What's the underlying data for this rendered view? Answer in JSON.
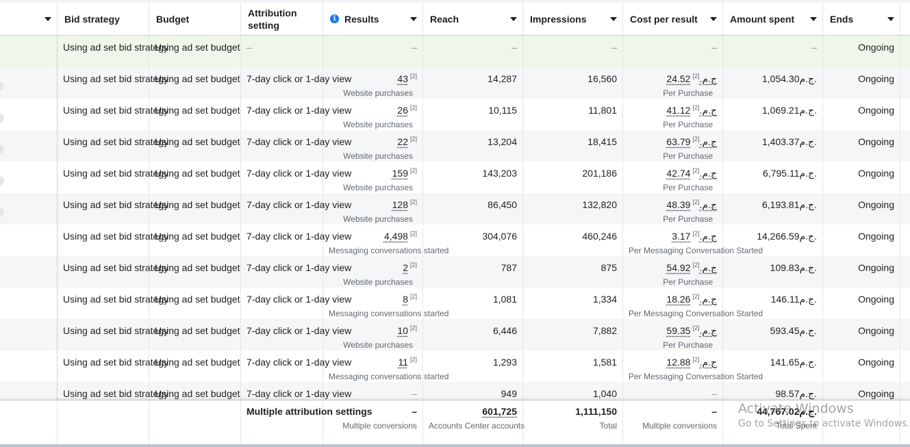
{
  "columns": [
    {
      "label": "",
      "has_caret": true
    },
    {
      "label": "Bid strategy"
    },
    {
      "label": "Budget"
    },
    {
      "label": "Attribution setting"
    },
    {
      "label": "Results",
      "info": "i",
      "has_caret": true
    },
    {
      "label": "Reach",
      "has_caret": true
    },
    {
      "label": "Impressions",
      "has_caret": true
    },
    {
      "label": "Cost per result",
      "has_caret": true
    },
    {
      "label": "Amount spent",
      "has_caret": true
    },
    {
      "label": "Ends",
      "has_caret": true
    }
  ],
  "rows": [
    {
      "bid": "Using ad set bid strategy",
      "budget": "Using ad set budget",
      "attr": "–",
      "results": "–",
      "results_sub": "",
      "reach": "–",
      "impressions": "–",
      "cost": "–",
      "cost_sub": "",
      "spent": "–",
      "ends": "Ongoing"
    },
    {
      "bid": "Using ad set bid strategy",
      "budget": "Using ad set budget",
      "attr": "7-day click or 1-day view",
      "results": "43",
      "results_sub": "Website purchases",
      "reach": "14,287",
      "impressions": "16,560",
      "cost": "24.52ج.م.",
      "cost_sub": "Per Purchase",
      "spent": "1,054.30ج.م.",
      "ends": "Ongoing"
    },
    {
      "bid": "Using ad set bid strategy",
      "budget": "Using ad set budget",
      "attr": "7-day click or 1-day view",
      "results": "26",
      "results_sub": "Website purchases",
      "reach": "10,115",
      "impressions": "11,801",
      "cost": "41.12ج.م.",
      "cost_sub": "Per Purchase",
      "spent": "1,069.21ج.م.",
      "ends": "Ongoing"
    },
    {
      "bid": "Using ad set bid strategy",
      "budget": "Using ad set budget",
      "attr": "7-day click or 1-day view",
      "results": "22",
      "results_sub": "Website purchases",
      "reach": "13,204",
      "impressions": "18,415",
      "cost": "63.79ج.م.",
      "cost_sub": "Per Purchase",
      "spent": "1,403.37ج.م.",
      "ends": "Ongoing"
    },
    {
      "bid": "Using ad set bid strategy",
      "budget": "Using ad set budget",
      "attr": "7-day click or 1-day view",
      "results": "159",
      "results_sub": "Website purchases",
      "reach": "143,203",
      "impressions": "201,186",
      "cost": "42.74ج.م.",
      "cost_sub": "Per Purchase",
      "spent": "6,795.11ج.م.",
      "ends": "Ongoing"
    },
    {
      "bid": "Using ad set bid strategy",
      "budget": "Using ad set budget",
      "attr": "7-day click or 1-day view",
      "results": "128",
      "results_sub": "Website purchases",
      "reach": "86,450",
      "impressions": "132,820",
      "cost": "48.39ج.م.",
      "cost_sub": "Per Purchase",
      "spent": "6,193.81ج.م.",
      "ends": "Ongoing"
    },
    {
      "bid": "Using ad set bid strategy",
      "budget": "Using ad set budget",
      "attr": "7-day click or 1-day view",
      "results": "4,498",
      "results_sub": "Messaging conversations started",
      "reach": "304,076",
      "impressions": "460,246",
      "cost": "3.17ج.م.",
      "cost_sub": "Per Messaging Conversation Started",
      "spent": "14,266.59ج.م.",
      "ends": "Ongoing"
    },
    {
      "bid": "Using ad set bid strategy",
      "budget": "Using ad set budget",
      "attr": "7-day click or 1-day view",
      "results": "2",
      "results_sub": "Website purchases",
      "reach": "787",
      "impressions": "875",
      "cost": "54.92ج.م.",
      "cost_sub": "Per Purchase",
      "spent": "109.83ج.م.",
      "ends": "Ongoing"
    },
    {
      "bid": "Using ad set bid strategy",
      "budget": "Using ad set budget",
      "attr": "7-day click or 1-day view",
      "results": "8",
      "results_sub": "Messaging conversations started",
      "reach": "1,081",
      "impressions": "1,334",
      "cost": "18.26ج.م.",
      "cost_sub": "Per Messaging Conversation Started",
      "spent": "146.11ج.م.",
      "ends": "Ongoing"
    },
    {
      "bid": "Using ad set bid strategy",
      "budget": "Using ad set budget",
      "attr": "7-day click or 1-day view",
      "results": "10",
      "results_sub": "Website purchases",
      "reach": "6,446",
      "impressions": "7,882",
      "cost": "59.35ج.م.",
      "cost_sub": "Per Purchase",
      "spent": "593.45ج.م.",
      "ends": "Ongoing"
    },
    {
      "bid": "Using ad set bid strategy",
      "budget": "Using ad set budget",
      "attr": "7-day click or 1-day view",
      "results": "11",
      "results_sub": "Messaging conversations started",
      "reach": "1,293",
      "impressions": "1,581",
      "cost": "12.88ج.م.",
      "cost_sub": "Per Messaging Conversation Started",
      "spent": "141.65ج.م.",
      "ends": "Ongoing"
    },
    {
      "bid": "Using ad set bid strategy",
      "budget": "Using ad set budget",
      "attr": "7-day click or 1-day view",
      "results": "–",
      "results_sub": "",
      "reach": "949",
      "impressions": "1,040",
      "cost": "–",
      "cost_sub": "",
      "spent": "98.57ج.م.",
      "ends": "Ongoing"
    }
  ],
  "attribution_marker": "[2]",
  "totals": {
    "attr": "Multiple attribution settings",
    "results": "–",
    "results_sub": "Multiple conversions",
    "reach": "601,725",
    "reach_sub": "Accounts Center accounts",
    "impressions": "1,111,150",
    "impressions_sub": "Total",
    "cost": "–",
    "cost_sub": "Multiple conversions",
    "spent": "44,767.02ج.م.",
    "spent_sub": "Total Spent"
  },
  "watermark": {
    "line1": "Activate Windows",
    "line2": "Go to Settings to activate Windows."
  },
  "colors": {
    "first_row_bg": "#eef7e9",
    "alt_row_bg": "#f5f6f7",
    "info_icon": "#1877f2"
  }
}
